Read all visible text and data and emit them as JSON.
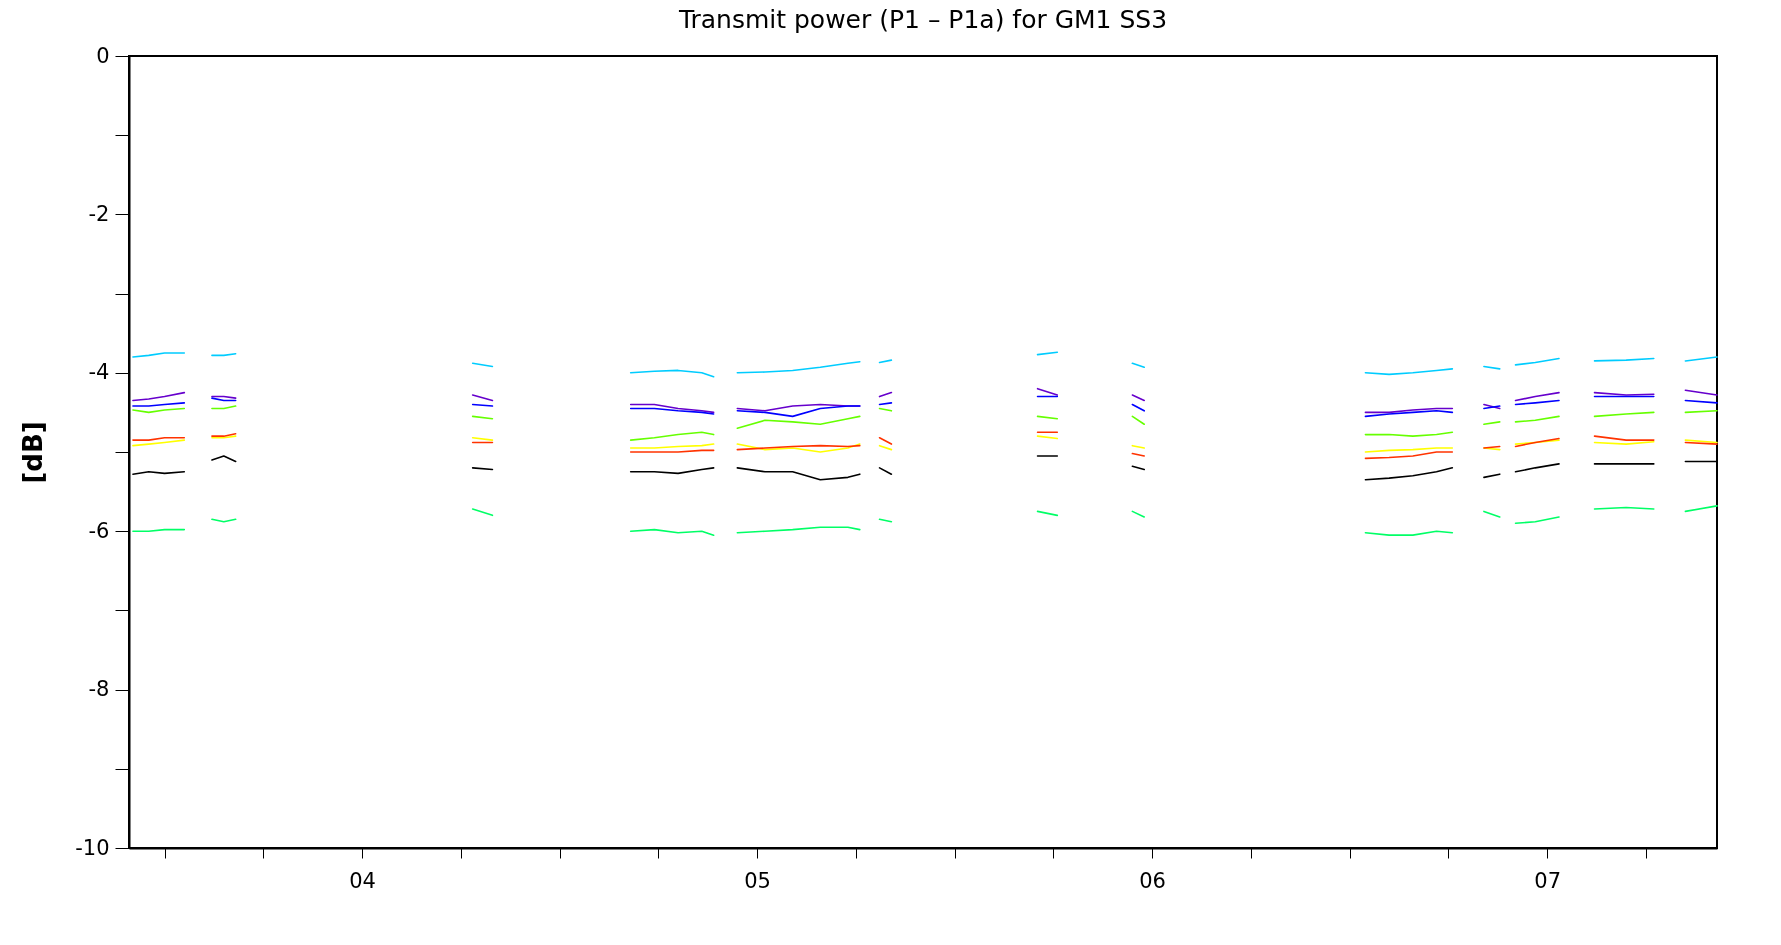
{
  "chart_data": {
    "type": "line",
    "title": "Transmit power (P1 – P1a) for GM1  SS3",
    "ylabel": "[dB]",
    "x": [
      3.42,
      3.46,
      3.5,
      3.55,
      3.58,
      3.62,
      3.65,
      3.68,
      4.0,
      4.28,
      4.33,
      4.5,
      4.68,
      4.74,
      4.8,
      4.86,
      4.89,
      4.92,
      4.95,
      5.02,
      5.09,
      5.16,
      5.23,
      5.26,
      5.29,
      5.31,
      5.34,
      5.5,
      5.71,
      5.76,
      5.85,
      5.95,
      5.98,
      6.2,
      6.54,
      6.6,
      6.66,
      6.72,
      6.76,
      6.8,
      6.84,
      6.88,
      6.895,
      6.92,
      6.97,
      7.03,
      7.07,
      7.12,
      7.2,
      7.27,
      7.3,
      7.35,
      7.43
    ],
    "series": [
      {
        "color": "#00ccff",
        "values": [
          -3.8,
          -3.78,
          -3.75,
          -3.75,
          null,
          -3.78,
          -3.78,
          -3.76,
          null,
          -3.88,
          -3.92,
          null,
          -4.0,
          -3.98,
          -3.97,
          -4.0,
          -4.05,
          null,
          -4.0,
          -3.99,
          -3.97,
          -3.93,
          -3.88,
          -3.86,
          null,
          -3.87,
          -3.84,
          null,
          -3.77,
          -3.74,
          null,
          -3.88,
          -3.93,
          null,
          -4.0,
          -4.02,
          -4.0,
          -3.97,
          -3.95,
          null,
          -3.92,
          -3.95,
          null,
          -3.9,
          -3.87,
          -3.82,
          null,
          -3.85,
          -3.84,
          -3.82,
          null,
          -3.85,
          -3.8
        ]
      },
      {
        "color": "#6600cc",
        "values": [
          -4.35,
          -4.33,
          -4.3,
          -4.25,
          null,
          -4.3,
          -4.3,
          -4.32,
          null,
          -4.28,
          -4.35,
          null,
          -4.4,
          -4.4,
          -4.45,
          -4.48,
          -4.5,
          null,
          -4.45,
          -4.48,
          -4.42,
          -4.4,
          -4.42,
          -4.42,
          null,
          -4.3,
          -4.25,
          null,
          -4.2,
          -4.28,
          null,
          -4.28,
          -4.35,
          null,
          -4.5,
          -4.5,
          -4.47,
          -4.45,
          -4.45,
          null,
          -4.4,
          -4.45,
          null,
          -4.35,
          -4.3,
          -4.25,
          null,
          -4.25,
          -4.28,
          -4.27,
          null,
          -4.22,
          -4.28
        ]
      },
      {
        "color": "#0000ff",
        "values": [
          -4.42,
          -4.42,
          -4.4,
          -4.38,
          null,
          -4.32,
          -4.35,
          -4.35,
          null,
          -4.4,
          -4.42,
          null,
          -4.45,
          -4.45,
          -4.48,
          -4.5,
          -4.52,
          null,
          -4.48,
          -4.5,
          -4.55,
          -4.45,
          -4.42,
          -4.42,
          null,
          -4.4,
          -4.38,
          null,
          -4.3,
          -4.3,
          null,
          -4.4,
          -4.48,
          null,
          -4.55,
          -4.52,
          -4.5,
          -4.48,
          -4.5,
          null,
          -4.45,
          -4.42,
          null,
          -4.4,
          -4.38,
          -4.35,
          null,
          -4.3,
          -4.3,
          -4.3,
          null,
          -4.35,
          -4.38
        ]
      },
      {
        "color": "#66ff00",
        "values": [
          -4.47,
          -4.5,
          -4.47,
          -4.45,
          null,
          -4.45,
          -4.45,
          -4.42,
          null,
          -4.55,
          -4.58,
          null,
          -4.85,
          -4.82,
          -4.78,
          -4.75,
          -4.78,
          null,
          -4.7,
          -4.6,
          -4.62,
          -4.65,
          -4.58,
          -4.55,
          null,
          -4.45,
          -4.48,
          null,
          -4.55,
          -4.58,
          null,
          -4.55,
          -4.65,
          null,
          -4.78,
          -4.78,
          -4.8,
          -4.78,
          -4.75,
          null,
          -4.65,
          -4.62,
          null,
          -4.62,
          -4.6,
          -4.55,
          null,
          -4.55,
          -4.52,
          -4.5,
          null,
          -4.5,
          -4.48
        ]
      },
      {
        "color": "#ffff00",
        "values": [
          -4.92,
          -4.9,
          -4.88,
          -4.85,
          null,
          -4.82,
          -4.82,
          -4.8,
          null,
          -4.82,
          -4.85,
          null,
          -4.95,
          -4.95,
          -4.93,
          -4.92,
          -4.9,
          null,
          -4.9,
          -4.97,
          -4.95,
          -5.0,
          -4.95,
          -4.9,
          null,
          -4.92,
          -4.97,
          null,
          -4.8,
          -4.83,
          null,
          -4.92,
          -4.95,
          null,
          -5.0,
          -4.98,
          -4.97,
          -4.95,
          -4.95,
          null,
          -4.95,
          -4.97,
          null,
          -4.9,
          -4.88,
          -4.85,
          null,
          -4.88,
          -4.9,
          -4.87,
          null,
          -4.85,
          -4.88
        ]
      },
      {
        "color": "#ff3300",
        "values": [
          -4.85,
          -4.85,
          -4.82,
          -4.82,
          null,
          -4.8,
          -4.8,
          -4.77,
          null,
          -4.88,
          -4.88,
          null,
          -5.0,
          -5.0,
          -5.0,
          -4.98,
          -4.98,
          null,
          -4.97,
          -4.95,
          -4.93,
          -4.92,
          -4.93,
          -4.92,
          null,
          -4.82,
          -4.9,
          null,
          -4.75,
          -4.75,
          null,
          -5.02,
          -5.05,
          null,
          -5.08,
          -5.07,
          -5.05,
          -5.0,
          -5.0,
          null,
          -4.95,
          -4.93,
          null,
          -4.93,
          -4.88,
          -4.83,
          null,
          -4.8,
          -4.85,
          -4.85,
          null,
          -4.88,
          -4.9
        ]
      },
      {
        "color": "#000000",
        "values": [
          -5.28,
          -5.25,
          -5.27,
          -5.25,
          null,
          -5.1,
          -5.05,
          -5.12,
          null,
          -5.2,
          -5.22,
          null,
          -5.25,
          -5.25,
          -5.27,
          -5.22,
          -5.2,
          null,
          -5.2,
          -5.25,
          -5.25,
          -5.35,
          -5.32,
          -5.28,
          null,
          -5.2,
          -5.28,
          null,
          -5.05,
          -5.05,
          null,
          -5.18,
          -5.22,
          null,
          -5.35,
          -5.33,
          -5.3,
          -5.25,
          -5.2,
          null,
          -5.32,
          -5.28,
          null,
          -5.25,
          -5.2,
          -5.15,
          null,
          -5.15,
          -5.15,
          -5.15,
          null,
          -5.12,
          -5.12
        ]
      },
      {
        "color": "#00ff66",
        "values": [
          -6.0,
          -6.0,
          -5.98,
          -5.98,
          null,
          -5.85,
          -5.88,
          -5.85,
          null,
          -5.72,
          -5.8,
          null,
          -6.0,
          -5.98,
          -6.02,
          -6.0,
          -6.05,
          null,
          -6.02,
          -6.0,
          -5.98,
          -5.95,
          -5.95,
          -5.98,
          null,
          -5.85,
          -5.88,
          null,
          -5.75,
          -5.8,
          null,
          -5.75,
          -5.82,
          null,
          -6.02,
          -6.05,
          -6.05,
          -6.0,
          -6.02,
          null,
          -5.75,
          -5.82,
          null,
          -5.9,
          -5.88,
          -5.82,
          null,
          -5.72,
          -5.7,
          -5.72,
          null,
          -5.75,
          -5.68
        ]
      }
    ],
    "xlim": [
      3.41,
      7.43
    ],
    "xticks": [
      {
        "value": 3.5,
        "label": null
      },
      {
        "value": 3.75,
        "label": null
      },
      {
        "value": 4,
        "label": "04"
      },
      {
        "value": 4.25,
        "label": null
      },
      {
        "value": 4.5,
        "label": null
      },
      {
        "value": 4.75,
        "label": null
      },
      {
        "value": 5,
        "label": "05"
      },
      {
        "value": 5.25,
        "label": null
      },
      {
        "value": 5.5,
        "label": null
      },
      {
        "value": 5.75,
        "label": null
      },
      {
        "value": 6,
        "label": "06"
      },
      {
        "value": 6.25,
        "label": null
      },
      {
        "value": 6.5,
        "label": null
      },
      {
        "value": 6.75,
        "label": null
      },
      {
        "value": 7,
        "label": "07"
      },
      {
        "value": 7.25,
        "label": null
      }
    ],
    "ylim": [
      -10,
      0
    ],
    "yticks": [
      -10,
      {
        "value": -9,
        "label": null
      },
      -8,
      {
        "value": -7,
        "label": null
      },
      -6,
      {
        "value": -5,
        "label": null
      },
      -4,
      {
        "value": -3,
        "label": null
      },
      -2,
      {
        "value": -1,
        "label": null
      },
      0
    ],
    "grid": false,
    "legend": false,
    "marker": "none",
    "line_style": "solid"
  }
}
